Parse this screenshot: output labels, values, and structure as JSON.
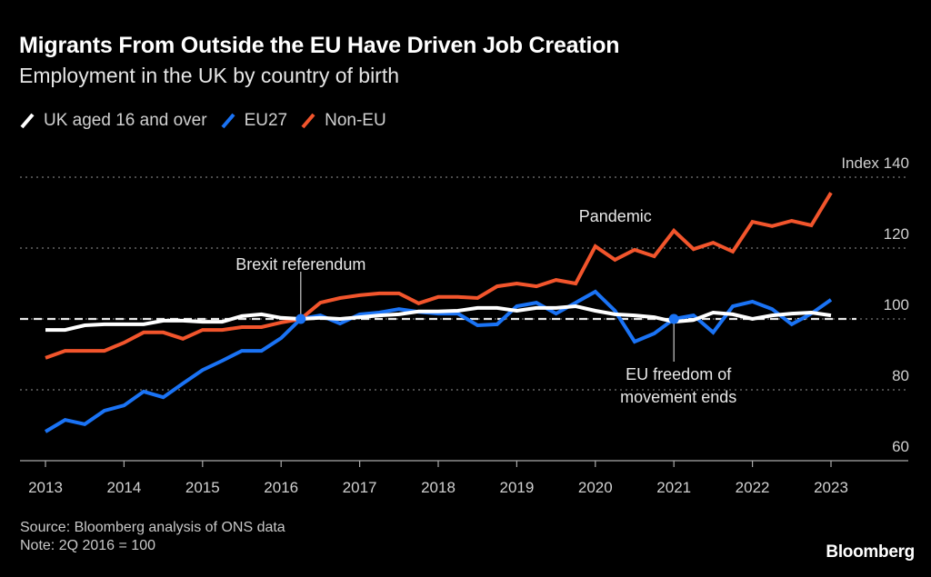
{
  "header": {
    "title": "Migrants From Outside the EU Have Driven Job Creation",
    "subtitle": "Employment in the UK by country of birth"
  },
  "footer": {
    "source": "Source: Bloomberg analysis of ONS data",
    "note": "Note: 2Q 2016 = 100",
    "brand": "Bloomberg"
  },
  "colors": {
    "background": "#000000",
    "uk": "#ffffff",
    "eu27": "#1a73f5",
    "non_eu": "#f2552c",
    "grid": "#777777",
    "axis": "#aaaaaa"
  },
  "chart_data": {
    "type": "line",
    "title": "Migrants From Outside the EU Have Driven Job Creation",
    "subtitle": "Employment in the UK by country of birth",
    "xlabel": "",
    "ylabel": "Index",
    "ylim": [
      60,
      140
    ],
    "y_ticks": [
      60,
      80,
      100,
      120,
      140
    ],
    "y_tick_labels": [
      "60",
      "80",
      "100",
      "120",
      "Index 140"
    ],
    "x_range": [
      2013.0,
      2024.0
    ],
    "x_ticks": [
      2013,
      2014,
      2015,
      2016,
      2017,
      2018,
      2019,
      2020,
      2021,
      2022,
      2023
    ],
    "x_tick_labels": [
      "2013",
      "2014",
      "2015",
      "2016",
      "2017",
      "2018",
      "2019",
      "2020",
      "2021",
      "2022",
      "2023"
    ],
    "grid": true,
    "legend_position": "top-left",
    "baseline": 100,
    "x_start": 2013.0,
    "x_step": 0.25,
    "series": [
      {
        "name": "UK aged 16 and over",
        "color_key": "uk",
        "values": [
          96.9,
          96.9,
          98.2,
          98.5,
          98.5,
          98.5,
          99.5,
          99.5,
          99.2,
          99.2,
          100.8,
          101.3,
          100.3,
          100.0,
          100.3,
          100.0,
          100.5,
          101.0,
          101.3,
          102.1,
          102.1,
          102.3,
          103.1,
          103.1,
          102.3,
          103.1,
          103.1,
          103.6,
          102.3,
          101.3,
          101.0,
          100.5,
          99.2,
          99.7,
          101.8,
          101.3,
          100.0,
          101.0,
          101.5,
          101.8,
          101.0
        ]
      },
      {
        "name": "EU27",
        "color_key": "eu27",
        "values": [
          68.2,
          71.5,
          70.3,
          74.1,
          75.6,
          79.5,
          77.9,
          81.8,
          85.6,
          88.2,
          91.0,
          91.0,
          94.6,
          100.0,
          101.0,
          98.7,
          101.3,
          101.8,
          102.8,
          102.0,
          101.5,
          101.5,
          98.2,
          98.5,
          103.6,
          104.6,
          101.5,
          104.6,
          107.7,
          102.3,
          93.6,
          95.9,
          100.0,
          101.0,
          96.2,
          103.6,
          104.9,
          102.8,
          98.5,
          101.5,
          105.4
        ]
      },
      {
        "name": "Non-EU",
        "color_key": "non_eu",
        "values": [
          89.0,
          91.0,
          91.0,
          91.0,
          93.3,
          96.2,
          96.2,
          94.4,
          96.9,
          96.9,
          97.7,
          97.7,
          99.0,
          100.0,
          104.6,
          105.9,
          106.7,
          107.2,
          107.2,
          104.4,
          106.2,
          106.2,
          105.9,
          109.2,
          110.0,
          109.2,
          111.0,
          110.0,
          120.5,
          116.7,
          119.5,
          117.7,
          124.9,
          119.7,
          121.5,
          119.0,
          127.4,
          126.2,
          127.7,
          126.4,
          135.6
        ]
      }
    ],
    "annotations": [
      {
        "label": "Brexit referendum",
        "x": 2016.25,
        "y": 100,
        "series": "EU27",
        "text_position": "above"
      },
      {
        "label_lines": [
          "EU freedom of",
          "movement ends"
        ],
        "x": 2021.0,
        "y": 100,
        "series": "EU27",
        "text_position": "below"
      },
      {
        "label": "Pandemic",
        "x": 2020.0,
        "series": "Non-EU",
        "text_position": "above"
      }
    ]
  }
}
